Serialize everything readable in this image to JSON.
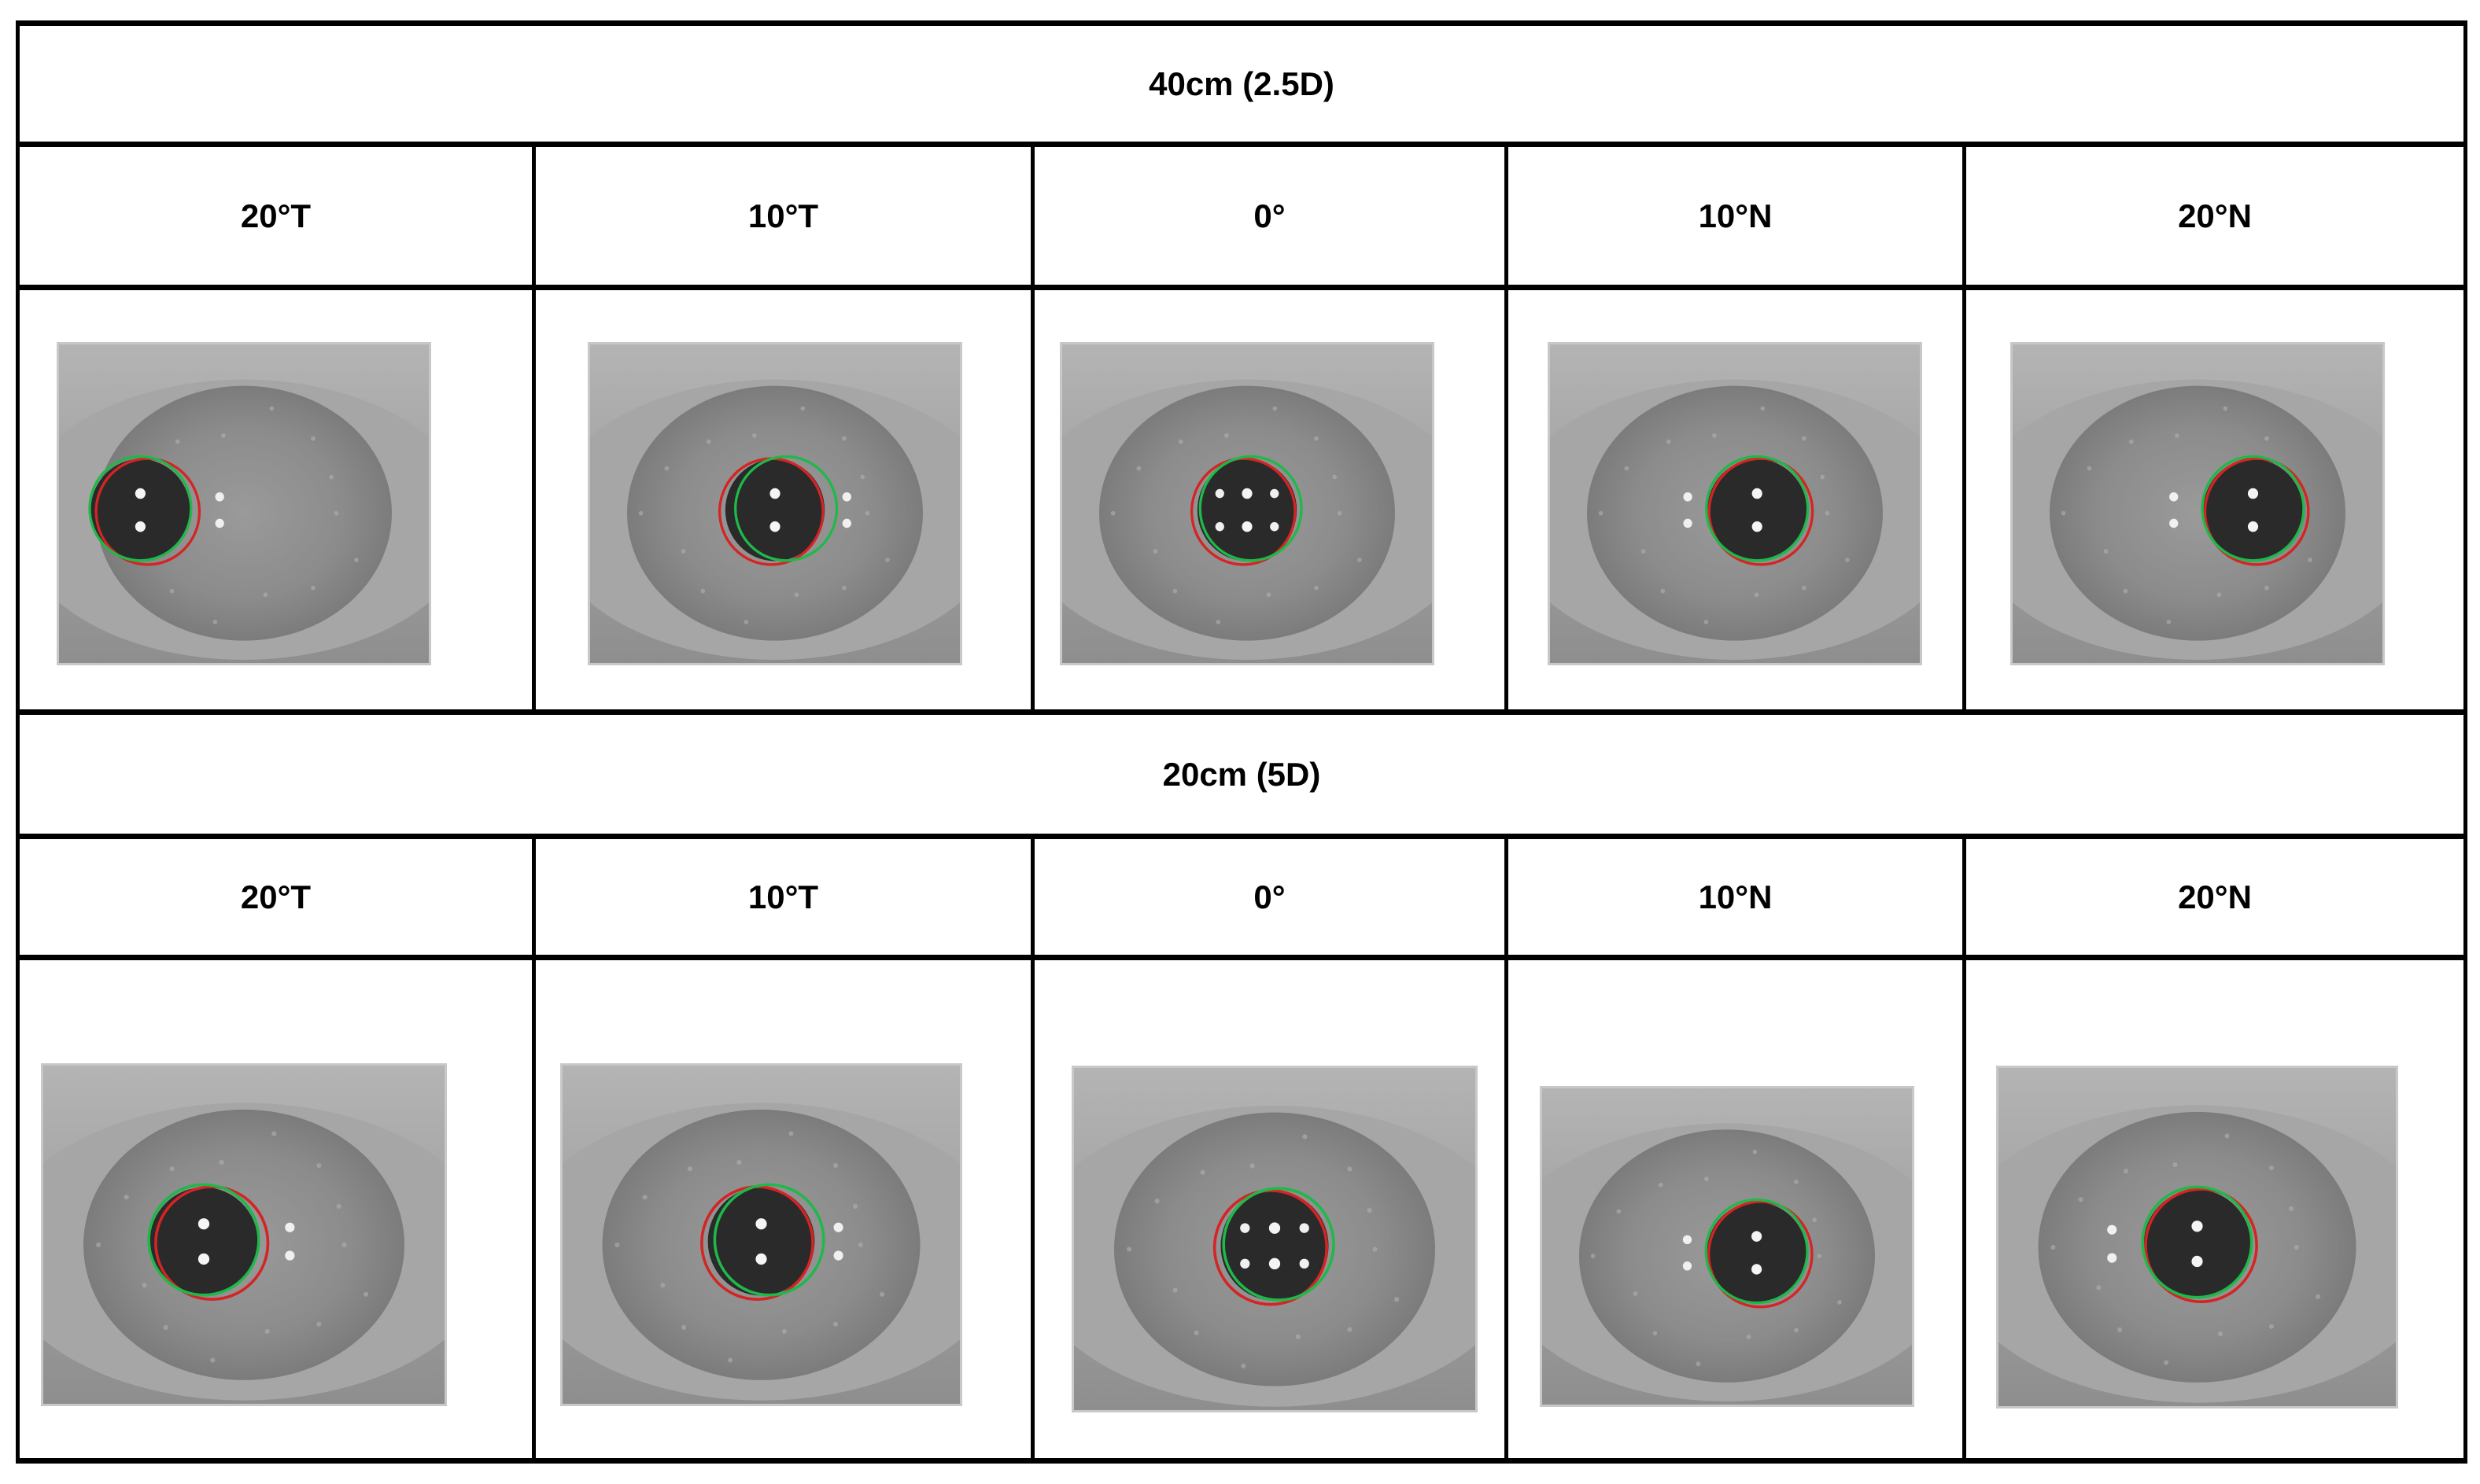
{
  "sections": [
    {
      "header": "40cm (2.5D)",
      "angles": [
        "20°T",
        "10°T",
        "0°",
        "10°N",
        "20°N"
      ],
      "images": [
        {
          "icon": "eye-image",
          "pupil_offset": -0.28,
          "green_offset": 0,
          "red_offset": 0.02,
          "glints": "temporal-far"
        },
        {
          "icon": "eye-image",
          "pupil_offset": 0.0,
          "green_offset": 0.03,
          "red_offset": -0.01,
          "glints": "temporal-near"
        },
        {
          "icon": "eye-image",
          "pupil_offset": 0.0,
          "green_offset": 0.01,
          "red_offset": -0.01,
          "glints": "center"
        },
        {
          "icon": "eye-image",
          "pupil_offset": 0.06,
          "green_offset": 0.0,
          "red_offset": 0.01,
          "glints": "nasal-near"
        },
        {
          "icon": "eye-image",
          "pupil_offset": 0.15,
          "green_offset": 0.0,
          "red_offset": 0.01,
          "glints": "nasal-far"
        }
      ]
    },
    {
      "header": "20cm (5D)",
      "angles": [
        "20°T",
        "10°T",
        "0°",
        "10°N",
        "20°N"
      ],
      "images": [
        {
          "icon": "eye-image",
          "pupil_offset": -0.1,
          "green_offset": 0,
          "red_offset": 0.02,
          "glints": "temporal-far"
        },
        {
          "icon": "eye-image",
          "pupil_offset": 0.0,
          "green_offset": 0.02,
          "red_offset": -0.01,
          "glints": "temporal-near"
        },
        {
          "icon": "eye-image",
          "pupil_offset": 0.0,
          "green_offset": 0.01,
          "red_offset": -0.01,
          "glints": "center"
        },
        {
          "icon": "eye-image",
          "pupil_offset": 0.08,
          "green_offset": 0.0,
          "red_offset": 0.01,
          "glints": "nasal-near"
        },
        {
          "icon": "eye-image",
          "pupil_offset": 0.0,
          "green_offset": 0.0,
          "red_offset": 0.01,
          "glints": "nasal-far"
        }
      ]
    }
  ],
  "colors": {
    "border": "#000000",
    "green_circle": "#1fb84a",
    "red_circle": "#d42424",
    "iris": "#8a8a8a",
    "pupil": "#2a2a2a"
  }
}
